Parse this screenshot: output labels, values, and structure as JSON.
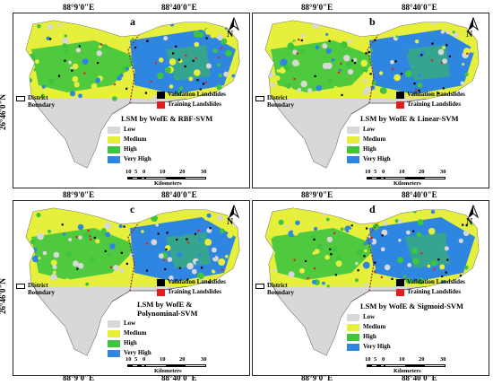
{
  "coords": {
    "top_left": "88°9'0\"E",
    "top_right": "88°40'0\"E",
    "lat": "26°46'0\"N"
  },
  "legend": {
    "district_boundary": "District Boundary",
    "validation": "Validation Landslides",
    "training": "Training Landslides",
    "classes": [
      "Low",
      "Medium",
      "High",
      "Very High"
    ],
    "kilometers": "Kilometers",
    "scale_ticks": [
      "10",
      "5",
      "0",
      "10",
      "20",
      "30"
    ]
  },
  "north_label": "N",
  "colors": {
    "low": "#d8d8d8",
    "medium": "#e6f03c",
    "high": "#3ec43e",
    "very_high": "#2f86e0",
    "validation": "#000000",
    "training": "#e02020"
  },
  "panels": [
    {
      "letter": "a",
      "title": "LSM by WofE & RBF-SVM"
    },
    {
      "letter": "b",
      "title": "LSM by WofE & Linear-SVM"
    },
    {
      "letter": "c",
      "title": "LSM by WofE & Polynominal-SVM"
    },
    {
      "letter": "d",
      "title": "LSM by WofE & Sigmoid-SVM"
    }
  ]
}
